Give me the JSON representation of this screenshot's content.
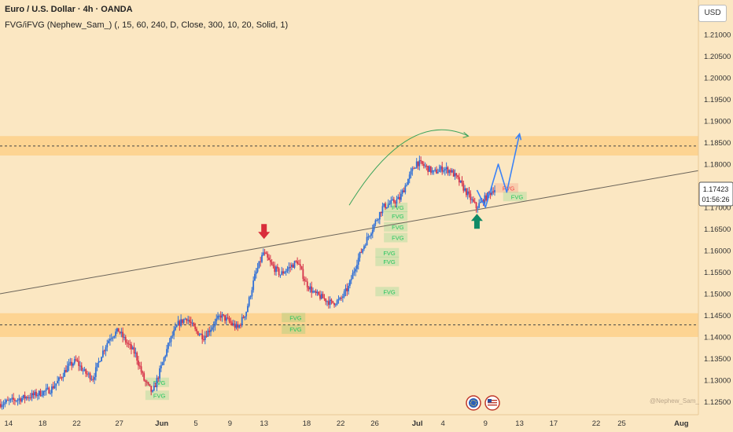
{
  "header": {
    "title": "Euro / U.S. Dollar · 4h · OANDA",
    "indicator": "FVG/iFVG (Nephew_Sam_) (, 15, 60, 240, D, Close, 300, 10, 20, Solid, 1)"
  },
  "currency_button": "USD",
  "watermark": "@Nephew_Sam_",
  "colors": {
    "background": "#fbe7c2",
    "zone": "#ffc56b",
    "bull_candle": "#2f6fd6",
    "bear_candle": "#d6334a",
    "fvg_bull": "#22c55e",
    "fvg_bear": "#ef4444",
    "projection": "#3b82f6",
    "arc": "#3aa35a",
    "down_arrow": "#d92d3a",
    "up_arrow": "#0f8a66"
  },
  "price_badge": {
    "price": "1.17423",
    "countdown": "01:56:26"
  },
  "chart_data": {
    "type": "candlestick",
    "y_ticks": [
      1.125,
      1.13,
      1.135,
      1.14,
      1.145,
      1.15,
      1.155,
      1.16,
      1.165,
      1.17,
      1.175,
      1.18,
      1.185,
      1.19,
      1.195,
      1.2,
      1.205,
      1.21
    ],
    "y_tick_labels": [
      "1.12500",
      "1.13000",
      "1.13500",
      "1.14000",
      "1.14500",
      "1.15000",
      "1.15500",
      "1.16000",
      "1.16500",
      "1.17000",
      "1.17500",
      "1.18000",
      "1.18500",
      "1.19000",
      "1.19500",
      "1.20000",
      "1.20500",
      "1.21000"
    ],
    "ylim": [
      1.122,
      1.218
    ],
    "xlim": [
      "2025-05-13",
      "2025-08-03"
    ],
    "x_ticks": [
      {
        "label": "14",
        "date": "2025-05-14"
      },
      {
        "label": "18",
        "date": "2025-05-18"
      },
      {
        "label": "22",
        "date": "2025-05-22"
      },
      {
        "label": "27",
        "date": "2025-05-27"
      },
      {
        "label": "Jun",
        "date": "2025-06-01"
      },
      {
        "label": "5",
        "date": "2025-06-05"
      },
      {
        "label": "9",
        "date": "2025-06-09"
      },
      {
        "label": "13",
        "date": "2025-06-13"
      },
      {
        "label": "18",
        "date": "2025-06-18"
      },
      {
        "label": "22",
        "date": "2025-06-22"
      },
      {
        "label": "26",
        "date": "2025-06-26"
      },
      {
        "label": "Jul",
        "date": "2025-07-01"
      },
      {
        "label": "4",
        "date": "2025-07-04"
      },
      {
        "label": "9",
        "date": "2025-07-09"
      },
      {
        "label": "13",
        "date": "2025-07-13"
      },
      {
        "label": "17",
        "date": "2025-07-17"
      },
      {
        "label": "22",
        "date": "2025-07-22"
      },
      {
        "label": "25",
        "date": "2025-07-25"
      },
      {
        "label": "Aug",
        "date": "2025-08-01"
      }
    ],
    "price_path": [
      [
        "2025-05-13",
        1.1245
      ],
      [
        "2025-05-15",
        1.1255
      ],
      [
        "2025-05-17",
        1.1265
      ],
      [
        "2025-05-19",
        1.1278
      ],
      [
        "2025-05-20",
        1.13
      ],
      [
        "2025-05-21",
        1.133
      ],
      [
        "2025-05-22",
        1.1345
      ],
      [
        "2025-05-23",
        1.1318
      ],
      [
        "2025-05-24",
        1.1305
      ],
      [
        "2025-05-25",
        1.136
      ],
      [
        "2025-05-26",
        1.14
      ],
      [
        "2025-05-27",
        1.1415
      ],
      [
        "2025-05-28",
        1.1385
      ],
      [
        "2025-05-29",
        1.136
      ],
      [
        "2025-05-30",
        1.13
      ],
      [
        "2025-05-31",
        1.127
      ],
      [
        "2025-06-01",
        1.133
      ],
      [
        "2025-06-02",
        1.139
      ],
      [
        "2025-06-03",
        1.143
      ],
      [
        "2025-06-04",
        1.1445
      ],
      [
        "2025-06-05",
        1.1415
      ],
      [
        "2025-06-06",
        1.14
      ],
      [
        "2025-06-07",
        1.1425
      ],
      [
        "2025-06-08",
        1.145
      ],
      [
        "2025-06-09",
        1.1435
      ],
      [
        "2025-06-10",
        1.142
      ],
      [
        "2025-06-11",
        1.146
      ],
      [
        "2025-06-12",
        1.154
      ],
      [
        "2025-06-13",
        1.1595
      ],
      [
        "2025-06-14",
        1.1565
      ],
      [
        "2025-06-15",
        1.1545
      ],
      [
        "2025-06-16",
        1.156
      ],
      [
        "2025-06-17",
        1.1575
      ],
      [
        "2025-06-18",
        1.1525
      ],
      [
        "2025-06-19",
        1.15
      ],
      [
        "2025-06-20",
        1.149
      ],
      [
        "2025-06-21",
        1.1478
      ],
      [
        "2025-06-22",
        1.1485
      ],
      [
        "2025-06-23",
        1.1515
      ],
      [
        "2025-06-24",
        1.1575
      ],
      [
        "2025-06-25",
        1.162
      ],
      [
        "2025-06-26",
        1.166
      ],
      [
        "2025-06-27",
        1.17
      ],
      [
        "2025-06-28",
        1.171
      ],
      [
        "2025-06-29",
        1.172
      ],
      [
        "2025-06-30",
        1.1765
      ],
      [
        "2025-07-01",
        1.1805
      ],
      [
        "2025-07-02",
        1.1795
      ],
      [
        "2025-07-03",
        1.178
      ],
      [
        "2025-07-04",
        1.179
      ],
      [
        "2025-07-05",
        1.1785
      ],
      [
        "2025-07-06",
        1.176
      ],
      [
        "2025-07-07",
        1.173
      ],
      [
        "2025-07-08",
        1.17
      ],
      [
        "2025-07-09",
        1.172
      ],
      [
        "2025-07-10",
        1.1742
      ]
    ],
    "zones": [
      {
        "from": 1.182,
        "to": 1.1865,
        "midline": 1.1842
      },
      {
        "from": 1.14,
        "to": 1.1455,
        "midline": 1.1428
      }
    ],
    "trendline": [
      [
        "2025-05-13",
        1.15
      ],
      [
        "2025-08-03",
        1.1785
      ]
    ],
    "projection": [
      [
        "2025-07-08",
        1.174
      ],
      [
        "2025-07-09",
        1.17
      ],
      [
        "2025-07-10.5",
        1.18
      ],
      [
        "2025-07-11.5",
        1.1735
      ],
      [
        "2025-07-13",
        1.187
      ]
    ],
    "fvg_boxes": [
      {
        "label": "FVG",
        "kind": "bull",
        "date": "2025-05-31",
        "price": 1.1295
      },
      {
        "label": "FVG",
        "kind": "bull",
        "date": "2025-05-31",
        "price": 1.1265
      },
      {
        "label": "FVG",
        "kind": "bull",
        "date": "2025-06-16",
        "price": 1.1445
      },
      {
        "label": "FVG",
        "kind": "bull",
        "date": "2025-06-16",
        "price": 1.1418
      },
      {
        "label": "FVG",
        "kind": "bull",
        "date": "2025-06-27",
        "price": 1.1505
      },
      {
        "label": "FVG",
        "kind": "bull",
        "date": "2025-06-27",
        "price": 1.1575
      },
      {
        "label": "FVG",
        "kind": "bull",
        "date": "2025-06-27",
        "price": 1.1595
      },
      {
        "label": "FVG",
        "kind": "bull",
        "date": "2025-06-28",
        "price": 1.163
      },
      {
        "label": "FVG",
        "kind": "bull",
        "date": "2025-06-28",
        "price": 1.1655
      },
      {
        "label": "FVG",
        "kind": "bull",
        "date": "2025-06-28",
        "price": 1.168
      },
      {
        "label": "FVG",
        "kind": "bull",
        "date": "2025-06-28",
        "price": 1.17
      },
      {
        "label": "FVG",
        "kind": "bear",
        "date": "2025-07-11",
        "price": 1.1745
      },
      {
        "label": "FVG",
        "kind": "bull",
        "date": "2025-07-12",
        "price": 1.1725
      }
    ]
  }
}
